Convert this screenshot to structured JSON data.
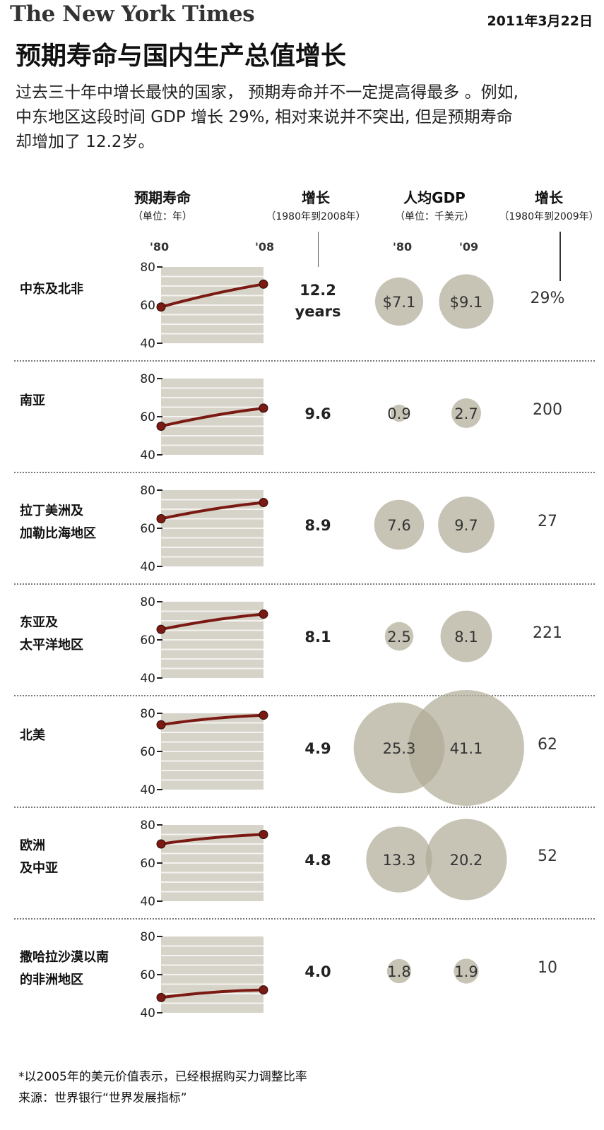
{
  "header": {
    "masthead": "The New York Times",
    "date": "2011年3月22日",
    "title": "预期寿命与国内生产总值增长",
    "intro_lines": [
      "过去三十年中增长最快的国家， 预期寿命并不一定提高得最多 。例如,",
      "中东地区这段时间 GDP 增长 29%, 相对来说并不突出, 但是预期寿命",
      "却增加了 12.2岁。"
    ]
  },
  "columns": {
    "life_expectancy": {
      "title": "预期寿命",
      "unit": "（单位：年）",
      "start_label": "'80",
      "end_label": "'08"
    },
    "life_growth": {
      "title": "增长",
      "period": "（1980年到2008年）"
    },
    "gdp": {
      "title": "人均GDP",
      "unit": "（单位：千美元）",
      "start_label": "'80",
      "end_label": "'09"
    },
    "gdp_growth": {
      "title": "增长",
      "period": "（1980年到2009年）"
    }
  },
  "chart_data": {
    "type": "line",
    "x": [
      "'80",
      "'08"
    ],
    "ylim": [
      40,
      80
    ],
    "yticks": [
      40,
      60,
      80
    ],
    "marker_color": "#7a1a12",
    "bubble_color": "#b2ac98",
    "series": [
      {
        "name": "中东及北非",
        "life_expectancy": [
          59,
          71
        ],
        "life_growth": "12.2",
        "life_growth_unit": "years",
        "gdp_labels": [
          "$7.1",
          "$9.1"
        ],
        "gdp_values": [
          7.1,
          9.1
        ],
        "gdp_growth": "29%"
      },
      {
        "name": "南亚",
        "life_expectancy": [
          55,
          64.5
        ],
        "life_growth": "9.6",
        "life_growth_unit": "",
        "gdp_labels": [
          "0.9",
          "2.7"
        ],
        "gdp_values": [
          0.9,
          2.7
        ],
        "gdp_growth": "200"
      },
      {
        "name": "拉丁美洲及加勒比海地区",
        "label_lines": [
          "拉丁美洲及",
          "加勒比海地区"
        ],
        "life_expectancy": [
          65,
          73.5
        ],
        "life_growth": "8.9",
        "life_growth_unit": "",
        "gdp_labels": [
          "7.6",
          "9.7"
        ],
        "gdp_values": [
          7.6,
          9.7
        ],
        "gdp_growth": "27"
      },
      {
        "name": "东亚及太平洋地区",
        "label_lines": [
          "东亚及",
          "太平洋地区"
        ],
        "life_expectancy": [
          65.5,
          73.5
        ],
        "life_growth": "8.1",
        "life_growth_unit": "",
        "gdp_labels": [
          "2.5",
          "8.1"
        ],
        "gdp_values": [
          2.5,
          8.1
        ],
        "gdp_growth": "221"
      },
      {
        "name": "北美",
        "life_expectancy": [
          74,
          79
        ],
        "life_growth": "4.9",
        "life_growth_unit": "",
        "gdp_labels": [
          "25.3",
          "41.1"
        ],
        "gdp_values": [
          25.3,
          41.1
        ],
        "gdp_growth": "62"
      },
      {
        "name": "欧洲及中亚",
        "label_lines": [
          "欧洲",
          "及中亚"
        ],
        "life_expectancy": [
          70,
          75
        ],
        "life_growth": "4.8",
        "life_growth_unit": "",
        "gdp_labels": [
          "13.3",
          "20.2"
        ],
        "gdp_values": [
          13.3,
          20.2
        ],
        "gdp_growth": "52"
      },
      {
        "name": "撒哈拉沙漠以南的非洲地区",
        "label_lines": [
          "撒哈拉沙漠以南",
          "的非洲地区"
        ],
        "life_expectancy": [
          48,
          52
        ],
        "life_growth": "4.0",
        "life_growth_unit": "",
        "gdp_labels": [
          "1.8",
          "1.9"
        ],
        "gdp_values": [
          1.8,
          1.9
        ],
        "gdp_growth": "10"
      }
    ]
  },
  "footnotes": {
    "note": "*以2005年的美元价值表示，已经根据购买力调整比率",
    "source": "来源：世界银行“世界发展指标”"
  }
}
